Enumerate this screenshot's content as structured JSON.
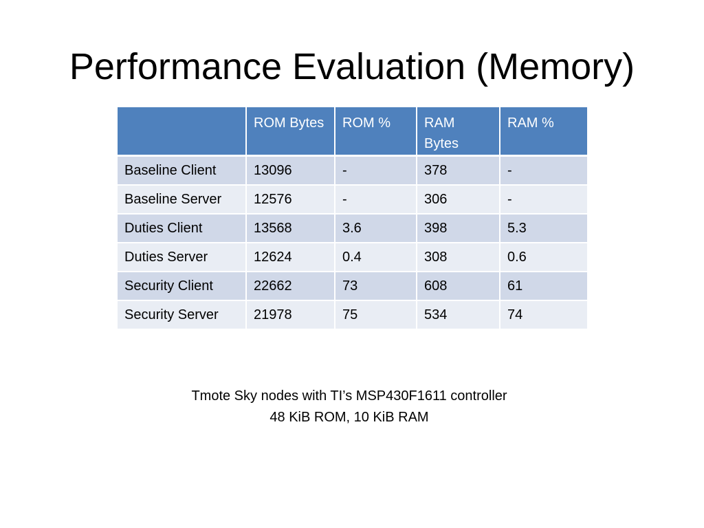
{
  "slide": {
    "title": "Performance Evaluation (Memory)"
  },
  "table": {
    "headers": [
      "",
      "ROM Bytes",
      "ROM %",
      "RAM Bytes",
      "RAM %"
    ],
    "rows": [
      [
        "Baseline Client",
        "13096",
        "-",
        "378",
        "-"
      ],
      [
        "Baseline Server",
        "12576",
        "-",
        "306",
        "-"
      ],
      [
        "Duties Client",
        "13568",
        "3.6",
        "398",
        "5.3"
      ],
      [
        "Duties Server",
        "12624",
        "0.4",
        "308",
        "0.6"
      ],
      [
        "Security Client",
        "22662",
        "73",
        "608",
        "61"
      ],
      [
        "Security Server",
        "21978",
        "75",
        "534",
        "74"
      ]
    ]
  },
  "footnote": {
    "line1": "Tmote Sky nodes with TI’s MSP430F1611 controller",
    "line2": "48 KiB ROM, 10 KiB RAM"
  },
  "colors": {
    "header_bg": "#4f81bd",
    "row_odd_bg": "#d0d8e8",
    "row_even_bg": "#e9edf4"
  }
}
